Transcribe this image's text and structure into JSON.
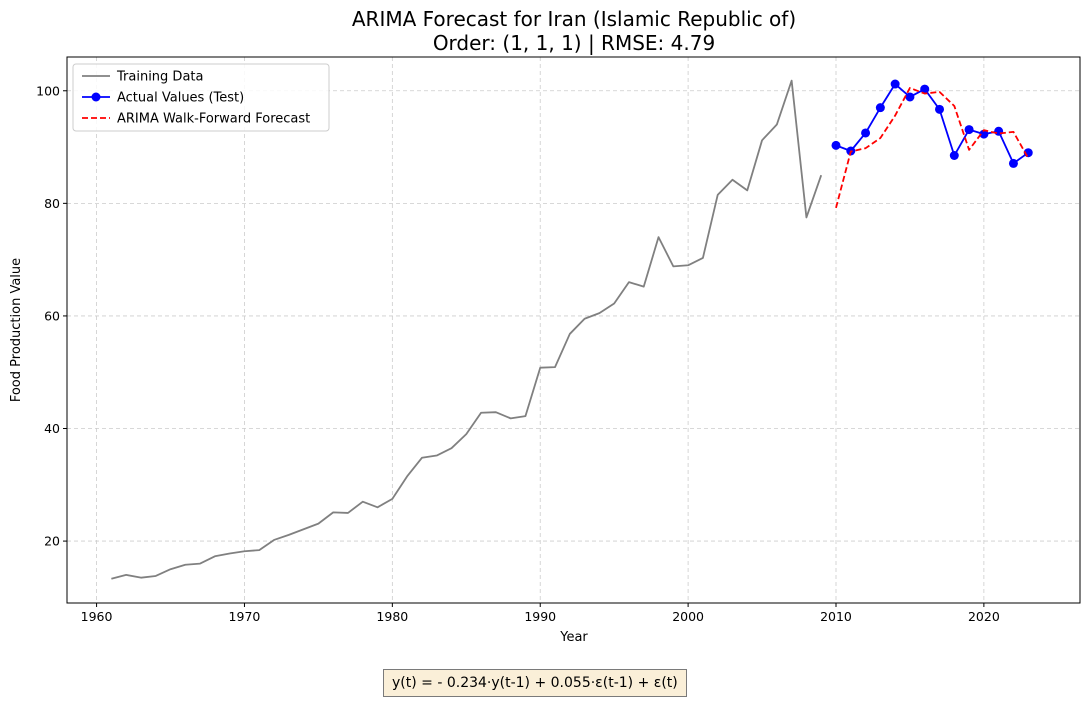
{
  "chart_data": {
    "type": "line",
    "title": "ARIMA Forecast for Iran (Islamic Republic of)",
    "subtitle": "Order: (1, 1, 1) | RMSE: 4.79",
    "xlabel": "Year",
    "ylabel": "Food Production Value",
    "xlim": [
      1958,
      2026.5
    ],
    "ylim": [
      9,
      106
    ],
    "xticks": [
      1960,
      1970,
      1980,
      1990,
      2000,
      2010,
      2020
    ],
    "yticks": [
      20,
      40,
      60,
      80,
      100
    ],
    "grid": true,
    "legend_position": "top-left",
    "series": [
      {
        "name": "Training Data",
        "color": "#808080",
        "style": "solid",
        "marker": "none",
        "x": [
          1961,
          1962,
          1963,
          1964,
          1965,
          1966,
          1967,
          1968,
          1969,
          1970,
          1971,
          1972,
          1973,
          1974,
          1975,
          1976,
          1977,
          1978,
          1979,
          1980,
          1981,
          1982,
          1983,
          1984,
          1985,
          1986,
          1987,
          1988,
          1989,
          1990,
          1991,
          1992,
          1993,
          1994,
          1995,
          1996,
          1997,
          1998,
          1999,
          2000,
          2001,
          2002,
          2003,
          2004,
          2005,
          2006,
          2007,
          2008,
          2009
        ],
        "y": [
          13.3,
          14.0,
          13.5,
          13.8,
          15.0,
          15.8,
          16.0,
          17.3,
          17.8,
          18.2,
          18.4,
          20.2,
          21.1,
          22.1,
          23.1,
          25.1,
          25.0,
          27.0,
          26.0,
          27.5,
          31.5,
          34.8,
          35.2,
          36.5,
          39.0,
          42.8,
          42.9,
          41.8,
          42.2,
          50.8,
          50.9,
          56.8,
          59.5,
          60.5,
          62.2,
          66.0,
          65.2,
          74.0,
          68.8,
          69.0,
          70.3,
          81.5,
          84.2,
          82.3,
          91.2,
          94.0,
          101.8,
          77.5,
          85.0
        ]
      },
      {
        "name": "Actual Values (Test)",
        "color": "#0000ff",
        "style": "solid",
        "marker": "circle",
        "x": [
          2010,
          2011,
          2012,
          2013,
          2014,
          2015,
          2016,
          2017,
          2018,
          2019,
          2020,
          2021,
          2022,
          2023
        ],
        "y": [
          90.3,
          89.3,
          92.5,
          97.0,
          101.2,
          98.9,
          100.3,
          96.7,
          88.5,
          93.1,
          92.3,
          92.8,
          87.1,
          89.0
        ]
      },
      {
        "name": "ARIMA Walk-Forward Forecast",
        "color": "#ff0000",
        "style": "dashed",
        "marker": "none",
        "x": [
          2010,
          2011,
          2012,
          2013,
          2014,
          2015,
          2016,
          2017,
          2018,
          2019,
          2020,
          2021,
          2022,
          2023
        ],
        "y": [
          79.2,
          89.2,
          89.8,
          91.6,
          95.6,
          100.5,
          99.5,
          99.8,
          97.3,
          89.5,
          93.0,
          92.4,
          92.7,
          88.0
        ]
      }
    ]
  },
  "equation": "y(t) = - 0.234·y(t-1) + 0.055·ε(t-1) + ε(t)"
}
